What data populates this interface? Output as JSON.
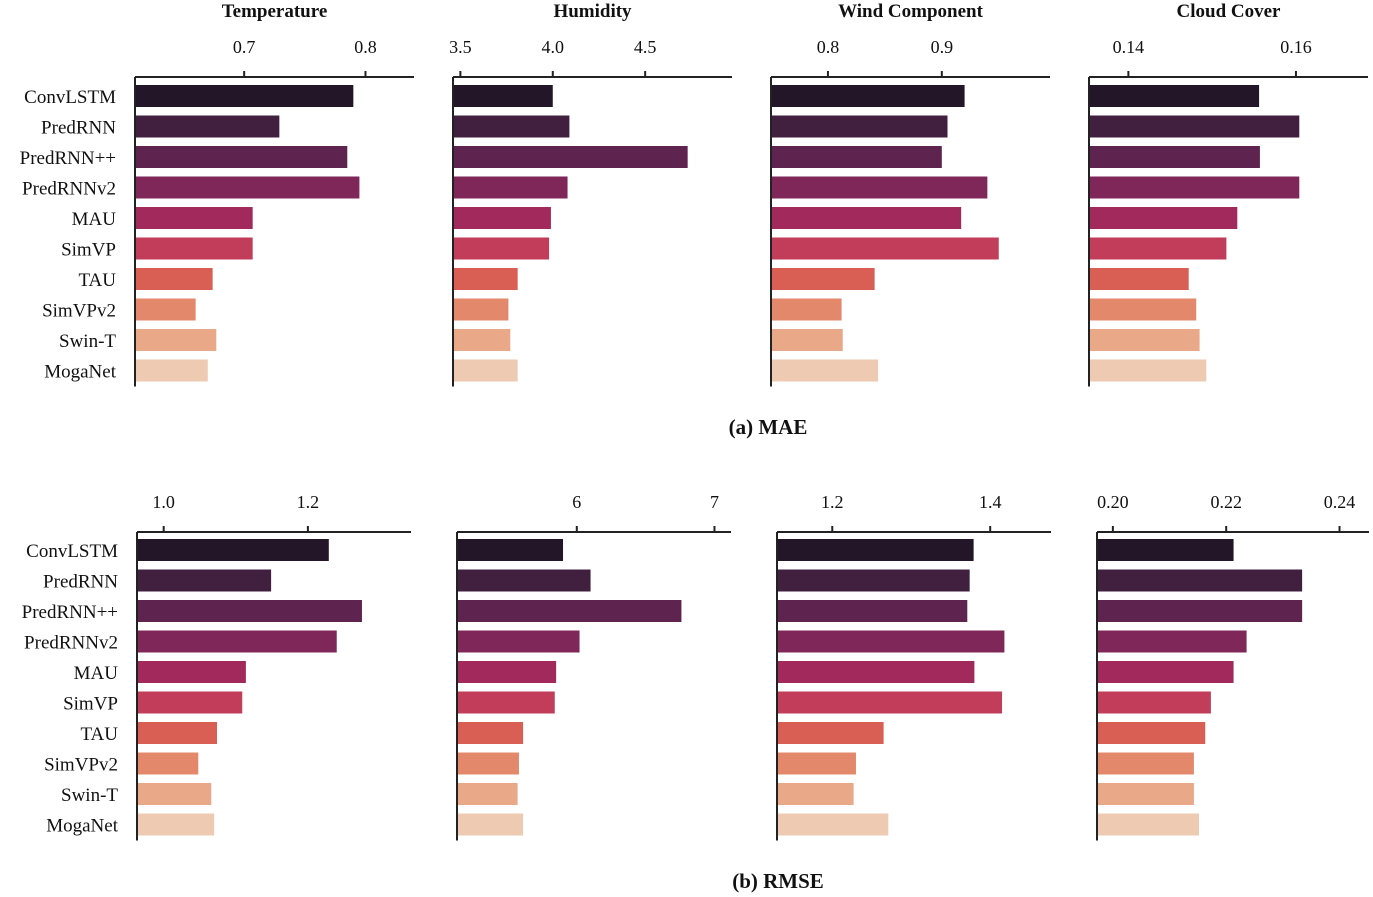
{
  "palette": [
    "#231629",
    "#41203f",
    "#5f2350",
    "#80275a",
    "#a2295b",
    "#c23d5a",
    "#d95f55",
    "#e3886b",
    "#e9a888",
    "#efcab2"
  ],
  "categories": [
    "ConvLSTM",
    "PredRNN",
    "PredRNN++",
    "PredRNNv2",
    "MAU",
    "SimVP",
    "TAU",
    "SimVPv2",
    "Swin-T",
    "MogaNet"
  ],
  "captions": [
    "(a) MAE",
    "(b) RMSE"
  ],
  "chart_data": [
    {
      "type": "bar",
      "orientation": "horizontal",
      "metric": "MAE",
      "title": "Temperature",
      "xlim": [
        0.61,
        0.84
      ],
      "ticks": [
        0.7,
        0.8
      ],
      "tick_labels": [
        "0.7",
        "0.8"
      ],
      "values": [
        0.79,
        0.729,
        0.785,
        0.795,
        0.707,
        0.707,
        0.674,
        0.66,
        0.677,
        0.67
      ]
    },
    {
      "type": "bar",
      "orientation": "horizontal",
      "metric": "MAE",
      "title": "Humidity",
      "xlim": [
        3.46,
        4.97
      ],
      "ticks": [
        3.5,
        4.0,
        4.5
      ],
      "tick_labels": [
        "3.5",
        "4.0",
        "4.5"
      ],
      "values": [
        4.0,
        4.09,
        4.73,
        4.08,
        3.99,
        3.98,
        3.81,
        3.76,
        3.77,
        3.81
      ]
    },
    {
      "type": "bar",
      "orientation": "horizontal",
      "metric": "MAE",
      "title": "Wind Component",
      "xlim": [
        0.75,
        0.995
      ],
      "ticks": [
        0.8,
        0.9
      ],
      "tick_labels": [
        "0.8",
        "0.9"
      ],
      "values": [
        0.92,
        0.905,
        0.9,
        0.94,
        0.917,
        0.95,
        0.841,
        0.812,
        0.813,
        0.844
      ]
    },
    {
      "type": "bar",
      "orientation": "horizontal",
      "metric": "MAE",
      "title": "Cloud Cover",
      "xlim": [
        0.1353,
        0.1686
      ],
      "ticks": [
        0.14,
        0.16
      ],
      "tick_labels": [
        "0.14",
        "0.16"
      ],
      "values": [
        0.1556,
        0.1604,
        0.1557,
        0.1604,
        0.153,
        0.1517,
        0.1472,
        0.1481,
        0.1485,
        0.1493
      ]
    },
    {
      "type": "bar",
      "orientation": "horizontal",
      "metric": "RMSE",
      "title": "",
      "xlim": [
        0.963,
        1.343
      ],
      "ticks": [
        1.0,
        1.2
      ],
      "tick_labels": [
        "1.0",
        "1.2"
      ],
      "values": [
        1.229,
        1.149,
        1.275,
        1.24,
        1.114,
        1.109,
        1.074,
        1.048,
        1.066,
        1.07
      ]
    },
    {
      "type": "bar",
      "orientation": "horizontal",
      "metric": "RMSE",
      "title": "",
      "xlim": [
        5.13,
        7.12
      ],
      "ticks": [
        6,
        7
      ],
      "tick_labels": [
        "6",
        "7"
      ],
      "values": [
        5.9,
        6.1,
        6.76,
        6.02,
        5.85,
        5.84,
        5.61,
        5.58,
        5.57,
        5.61
      ]
    },
    {
      "type": "bar",
      "orientation": "horizontal",
      "metric": "RMSE",
      "title": "",
      "xlim": [
        1.13,
        1.477
      ],
      "ticks": [
        1.2,
        1.4
      ],
      "tick_labels": [
        "1.2",
        "1.4"
      ],
      "values": [
        1.379,
        1.374,
        1.371,
        1.418,
        1.38,
        1.415,
        1.265,
        1.23,
        1.227,
        1.271
      ]
    },
    {
      "type": "bar",
      "orientation": "horizontal",
      "metric": "RMSE",
      "title": "",
      "xlim": [
        0.1972,
        0.2452
      ],
      "ticks": [
        0.2,
        0.22,
        0.24
      ],
      "tick_labels": [
        "0.20",
        "0.22",
        "0.24"
      ],
      "values": [
        0.2213,
        0.2334,
        0.2334,
        0.2236,
        0.2213,
        0.2173,
        0.2163,
        0.2143,
        0.2143,
        0.2152
      ]
    }
  ]
}
